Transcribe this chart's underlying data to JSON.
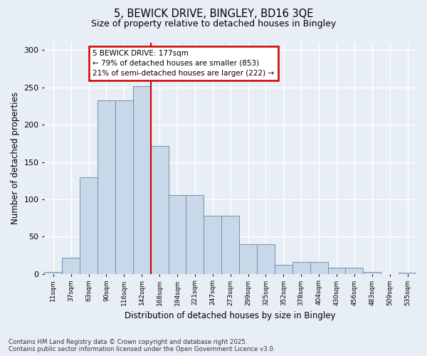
{
  "title_line1": "5, BEWICK DRIVE, BINGLEY, BD16 3QE",
  "title_line2": "Size of property relative to detached houses in Bingley",
  "xlabel": "Distribution of detached houses by size in Bingley",
  "ylabel": "Number of detached properties",
  "footer_line1": "Contains HM Land Registry data © Crown copyright and database right 2025.",
  "footer_line2": "Contains public sector information licensed under the Open Government Licence v3.0.",
  "categories": [
    "11sqm",
    "37sqm",
    "63sqm",
    "90sqm",
    "116sqm",
    "142sqm",
    "168sqm",
    "194sqm",
    "221sqm",
    "247sqm",
    "273sqm",
    "299sqm",
    "325sqm",
    "352sqm",
    "378sqm",
    "404sqm",
    "430sqm",
    "456sqm",
    "483sqm",
    "509sqm",
    "535sqm"
  ],
  "bar_values": [
    3,
    22,
    130,
    233,
    233,
    252,
    172,
    106,
    106,
    78,
    78,
    40,
    40,
    12,
    16,
    16,
    8,
    8,
    3,
    0,
    2
  ],
  "bar_color": "#c8d8e8",
  "bar_edge_color": "#7090b0",
  "annotation_title": "5 BEWICK DRIVE: 177sqm",
  "annotation_line1": "← 79% of detached houses are smaller (853)",
  "annotation_line2": "21% of semi-detached houses are larger (222) →",
  "ylim": [
    0,
    310
  ],
  "background_color": "#e8eef5",
  "grid_color": "#ffffff",
  "annotation_box_color": "#ffffff",
  "annotation_box_edge": "#cc0000",
  "vline_color": "#cc0000",
  "vline_x_index": 6.0
}
